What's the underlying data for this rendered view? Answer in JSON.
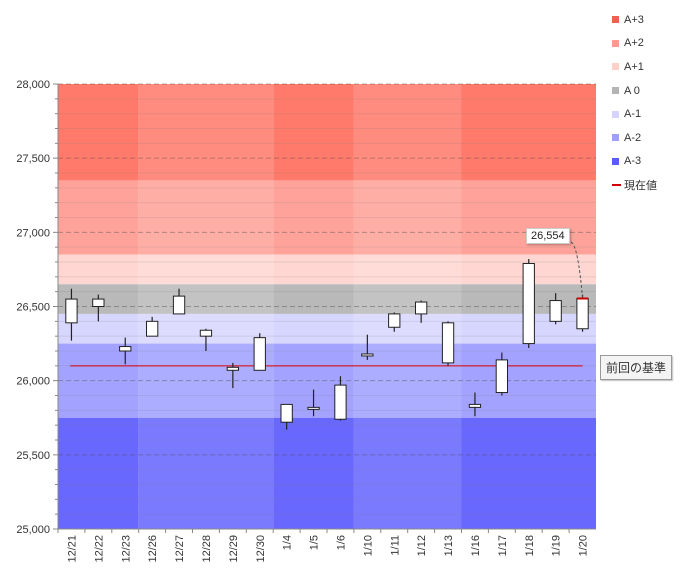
{
  "chart_data": {
    "type": "candlestick",
    "ylim": [
      25000,
      28000
    ],
    "ytick_values": [
      25000,
      25500,
      26000,
      26500,
      27000,
      27500,
      28000
    ],
    "ytick_labels": [
      "25,000",
      "25,500",
      "26,000",
      "26,500",
      "27,000",
      "27,500",
      "28,000"
    ],
    "categories": [
      "12/21",
      "12/22",
      "12/23",
      "12/26",
      "12/27",
      "12/28",
      "12/29",
      "12/30",
      "1/4",
      "1/5",
      "1/6",
      "1/10",
      "1/11",
      "1/12",
      "1/13",
      "1/16",
      "1/17",
      "1/18",
      "1/19",
      "1/20"
    ],
    "ohlc": [
      {
        "open": 26390,
        "high": 26620,
        "low": 26270,
        "close": 26550
      },
      {
        "open": 26500,
        "high": 26580,
        "low": 26400,
        "close": 26550
      },
      {
        "open": 26200,
        "high": 26290,
        "low": 26110,
        "close": 26230
      },
      {
        "open": 26300,
        "high": 26430,
        "low": 26300,
        "close": 26400
      },
      {
        "open": 26450,
        "high": 26620,
        "low": 26450,
        "close": 26570
      },
      {
        "open": 26300,
        "high": 26350,
        "low": 26200,
        "close": 26340
      },
      {
        "open": 26070,
        "high": 26120,
        "low": 25950,
        "close": 26090
      },
      {
        "open": 26070,
        "high": 26320,
        "low": 26070,
        "close": 26290
      },
      {
        "open": 25720,
        "high": 25840,
        "low": 25670,
        "close": 25840
      },
      {
        "open": 25810,
        "high": 25940,
        "low": 25760,
        "close": 25820
      },
      {
        "open": 25740,
        "high": 26030,
        "low": 25730,
        "close": 25970
      },
      {
        "open": 26170,
        "high": 26310,
        "low": 26140,
        "close": 26180
      },
      {
        "open": 26360,
        "high": 26460,
        "low": 26330,
        "close": 26450
      },
      {
        "open": 26450,
        "high": 26540,
        "low": 26390,
        "close": 26530
      },
      {
        "open": 26120,
        "high": 26400,
        "low": 26100,
        "close": 26390
      },
      {
        "open": 25820,
        "high": 25920,
        "low": 25760,
        "close": 25840
      },
      {
        "open": 25920,
        "high": 26190,
        "low": 25900,
        "close": 26140
      },
      {
        "open": 26250,
        "high": 26820,
        "low": 26220,
        "close": 26790
      },
      {
        "open": 26400,
        "high": 26590,
        "low": 26380,
        "close": 26540
      },
      {
        "open": 26350,
        "high": 26580,
        "low": 26330,
        "close": 26554
      }
    ],
    "bands": [
      {
        "name": "A+3",
        "from": 27350,
        "to": 28000,
        "color": "#ff7a6a",
        "color_alt": "#ff8c7e"
      },
      {
        "name": "A+2",
        "from": 26850,
        "to": 27350,
        "color": "#ffa39a",
        "color_alt": "#ffaea6"
      },
      {
        "name": "A+1",
        "from": 26650,
        "to": 26850,
        "color": "#ffd6d1",
        "color_alt": "#ffdcd8"
      },
      {
        "name": "A 0",
        "from": 26450,
        "to": 26650,
        "color": "#b9b9b9",
        "color_alt": "#c3c3c3"
      },
      {
        "name": "A-1",
        "from": 26250,
        "to": 26450,
        "color": "#d6d6ff",
        "color_alt": "#dddcff"
      },
      {
        "name": "A-2",
        "from": 25750,
        "to": 26250,
        "color": "#a3a3ff",
        "color_alt": "#adadff"
      },
      {
        "name": "A-3",
        "from": 25000,
        "to": 25750,
        "color": "#6868ff",
        "color_alt": "#7a7aff"
      }
    ],
    "legend": [
      {
        "label": "A+3",
        "color": "#f06050"
      },
      {
        "label": "A+2",
        "color": "#ff9a90"
      },
      {
        "label": "A+1",
        "color": "#ffcfca"
      },
      {
        "label": "A 0",
        "color": "#b4b4b4"
      },
      {
        "label": "A-1",
        "color": "#d4d4ff"
      },
      {
        "label": "A-2",
        "color": "#9f9fff"
      },
      {
        "label": "A-3",
        "color": "#5a5aff"
      },
      {
        "label": "現在値",
        "color": "#cc0000",
        "kind": "line"
      }
    ],
    "reference_line": {
      "label": "前回の基準",
      "value": 26100,
      "color": "#dd0000"
    },
    "current_value": {
      "value": 26554,
      "label": "26,554"
    }
  }
}
